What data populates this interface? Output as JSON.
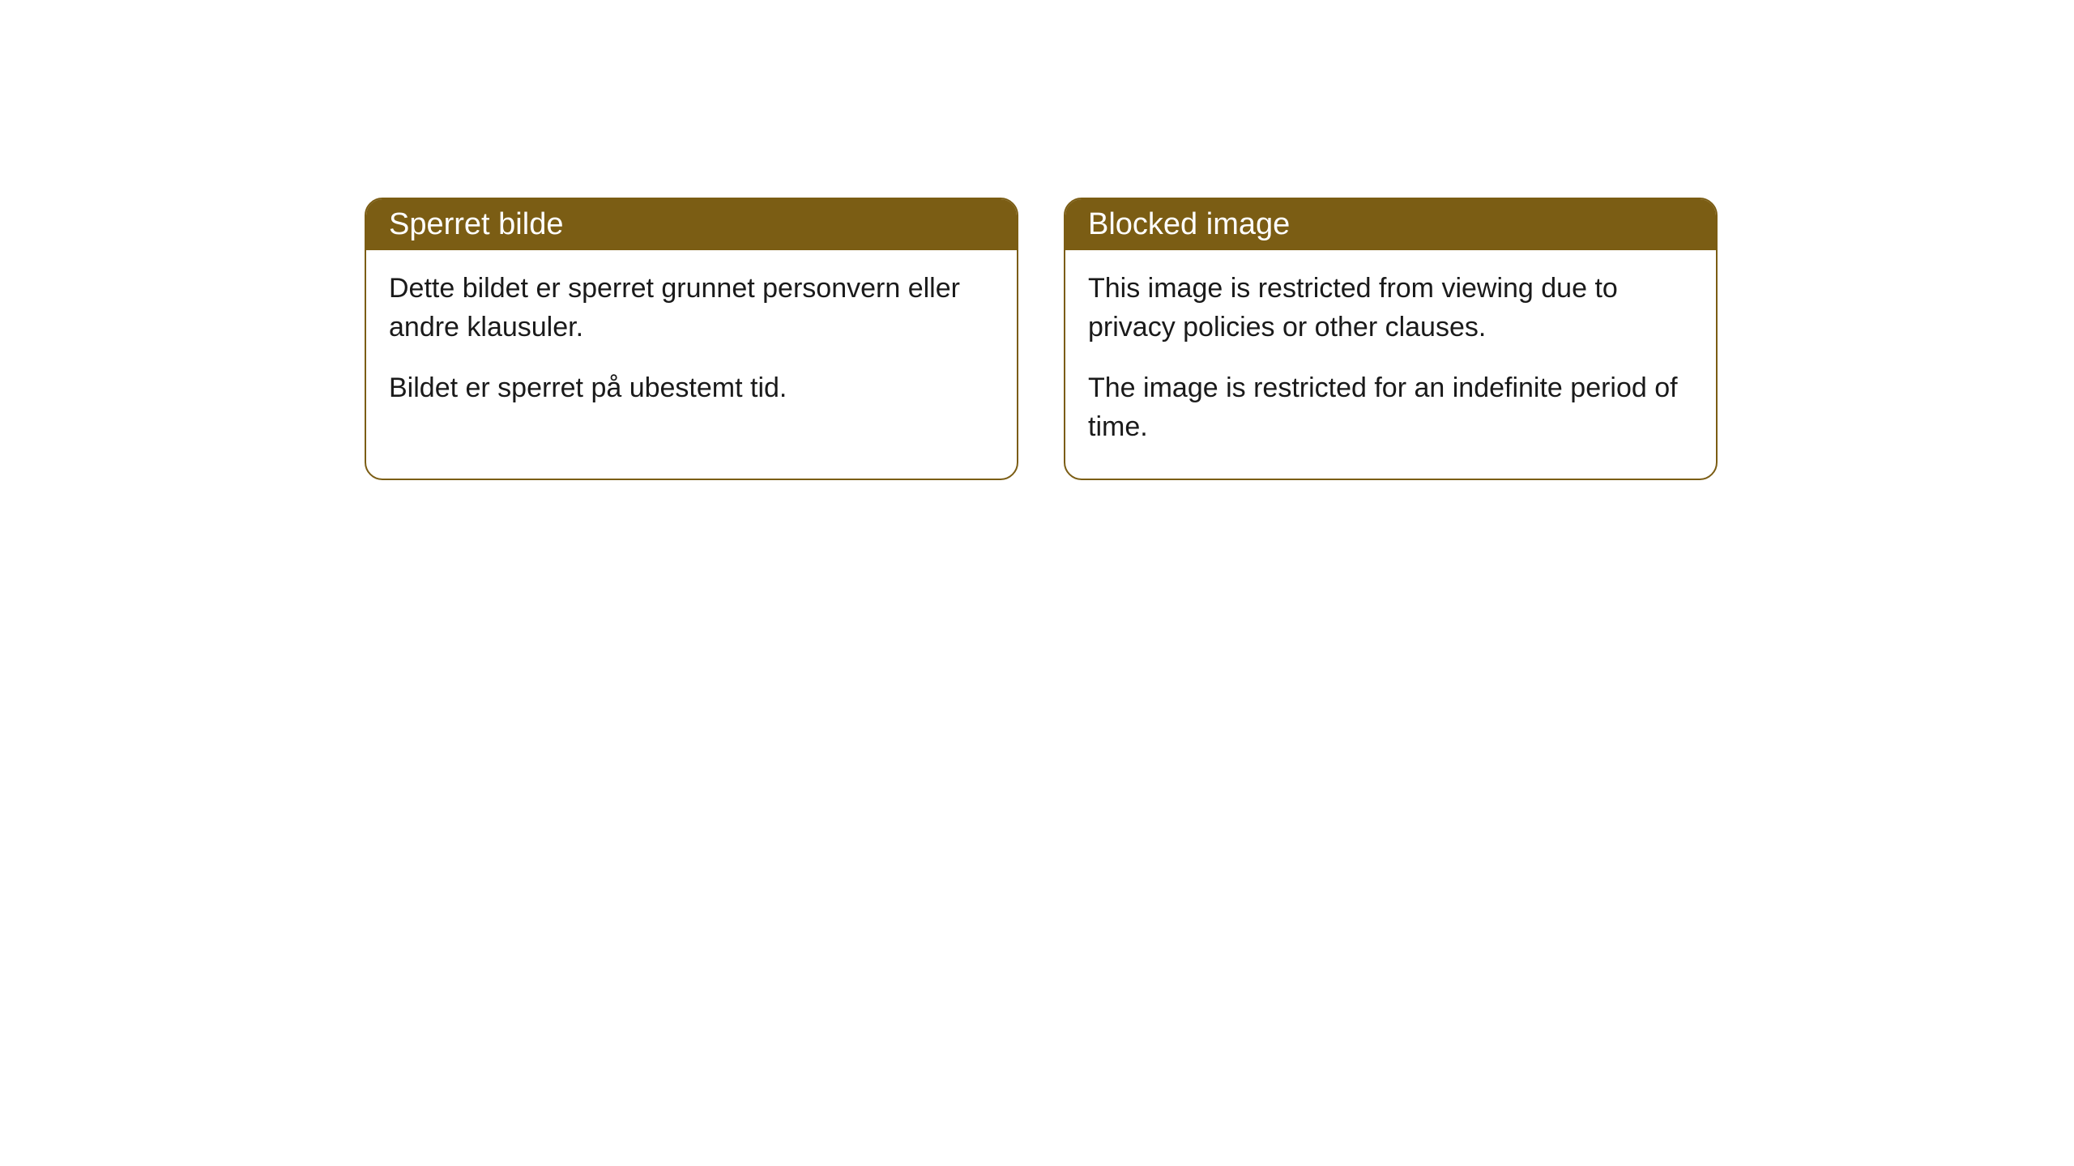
{
  "cards": [
    {
      "title": "Sperret bilde",
      "paragraph1": "Dette bildet er sperret grunnet personvern eller andre klausuler.",
      "paragraph2": "Bildet er sperret på ubestemt tid."
    },
    {
      "title": "Blocked image",
      "paragraph1": "This image is restricted from viewing due to privacy policies or other clauses.",
      "paragraph2": "The image is restricted for an indefinite period of time."
    }
  ],
  "style": {
    "header_bg_color": "#7b5d14",
    "header_text_color": "#ffffff",
    "border_color": "#7b5d14",
    "body_text_color": "#1a1a1a",
    "background_color": "#ffffff",
    "border_radius": 22,
    "title_fontsize": 38,
    "body_fontsize": 34
  }
}
